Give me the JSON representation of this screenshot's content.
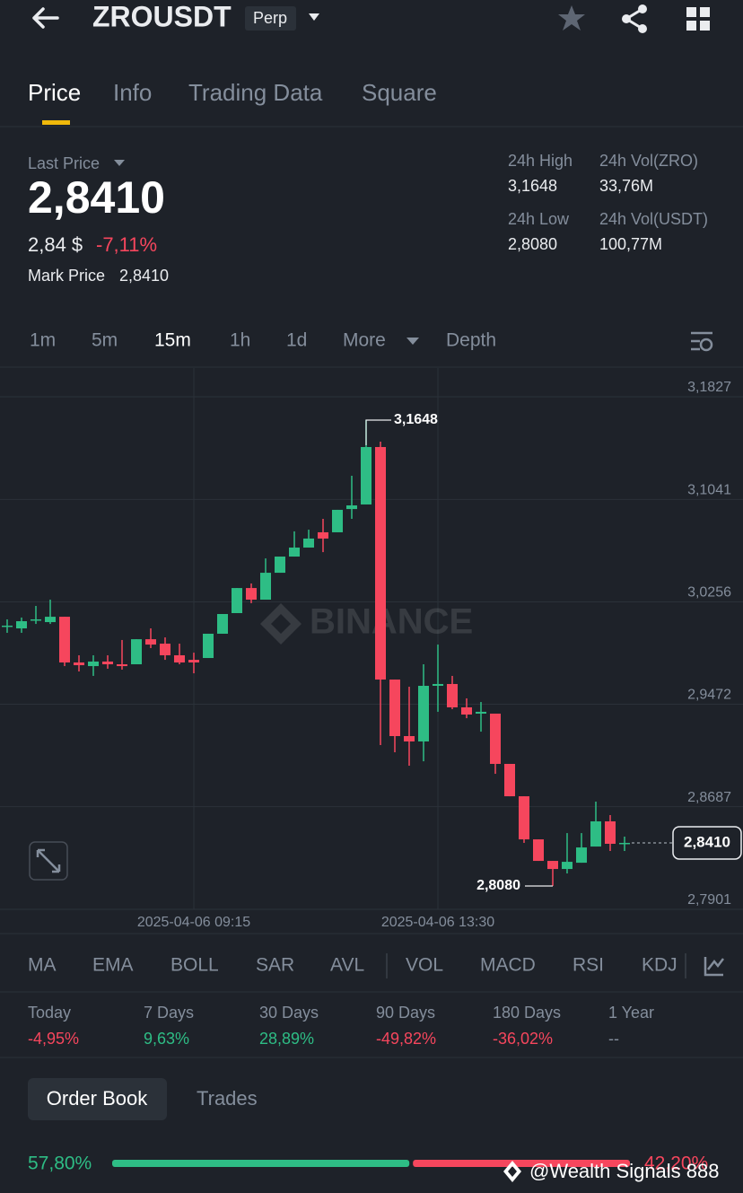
{
  "header": {
    "symbol": "ZROUSDT",
    "badge": "Perp"
  },
  "tabs": [
    "Price",
    "Info",
    "Trading Data",
    "Square"
  ],
  "last_price": {
    "label": "Last Price",
    "value": "2,8410",
    "usd": "2,84 $",
    "change": "-7,11%",
    "mark_label": "Mark Price",
    "mark_value": "2,8410"
  },
  "stats": [
    {
      "label": "24h High",
      "value": "3,1648"
    },
    {
      "label": "24h Vol(ZRO)",
      "value": "33,76M"
    },
    {
      "label": "24h Low",
      "value": "2,8080"
    },
    {
      "label": "24h Vol(USDT)",
      "value": "100,77M"
    }
  ],
  "intervals": [
    "1m",
    "5m",
    "15m",
    "1h",
    "1d",
    "More",
    "Depth"
  ],
  "chart": {
    "type": "candlestick",
    "watermark": "BINANCE",
    "up_color": "#2ebd85",
    "down_color": "#f6465d",
    "ylim": [
      2.7901,
      3.2047
    ],
    "yticks": [
      {
        "value": 3.1827,
        "label": "3,1827"
      },
      {
        "value": 3.1041,
        "label": "3,1041"
      },
      {
        "value": 3.0256,
        "label": "3,0256"
      },
      {
        "value": 2.9472,
        "label": "2,9472"
      },
      {
        "value": 2.8687,
        "label": "2,8687"
      },
      {
        "value": 2.7901,
        "label": "2,7901"
      }
    ],
    "categories": [
      null,
      null,
      null,
      null,
      null,
      null,
      null,
      null,
      null,
      null,
      null,
      null,
      null,
      "2025-04-06 09:15",
      null,
      null,
      null,
      null,
      null,
      null,
      null,
      null,
      null,
      null,
      null,
      null,
      null,
      null,
      null,
      null,
      "2025-04-06 13:30",
      null,
      null,
      null,
      null,
      null,
      null,
      null,
      null,
      null,
      null,
      null,
      null,
      null
    ],
    "candles": [
      {
        "open": 3.0074,
        "high": 3.0122,
        "low": 3.0019,
        "close": 3.0074
      },
      {
        "open": 3.0053,
        "high": 3.0136,
        "low": 3.0019,
        "close": 3.0108
      },
      {
        "open": 3.0122,
        "high": 3.0225,
        "low": 3.0087,
        "close": 3.0122
      },
      {
        "open": 3.0101,
        "high": 3.0273,
        "low": 3.0087,
        "close": 3.0142
      },
      {
        "open": 3.0142,
        "high": 3.0142,
        "low": 2.9764,
        "close": 2.9792
      },
      {
        "open": 2.9792,
        "high": 2.9847,
        "low": 2.9723,
        "close": 2.9771
      },
      {
        "open": 2.9764,
        "high": 2.9847,
        "low": 2.9689,
        "close": 2.9799
      },
      {
        "open": 2.9799,
        "high": 2.9847,
        "low": 2.9744,
        "close": 2.9778
      },
      {
        "open": 2.9778,
        "high": 2.9964,
        "low": 2.9737,
        "close": 2.9764
      },
      {
        "open": 2.9778,
        "high": 2.997,
        "low": 2.9778,
        "close": 2.997
      },
      {
        "open": 2.997,
        "high": 3.0053,
        "low": 2.9902,
        "close": 2.9929
      },
      {
        "open": 2.9936,
        "high": 2.9984,
        "low": 2.9812,
        "close": 2.9847
      },
      {
        "open": 2.9847,
        "high": 2.9936,
        "low": 2.9778,
        "close": 2.9792
      },
      {
        "open": 2.9812,
        "high": 2.9867,
        "low": 2.9709,
        "close": 2.9792
      },
      {
        "open": 2.9826,
        "high": 3.0012,
        "low": 2.9826,
        "close": 3.0012
      },
      {
        "open": 3.0012,
        "high": 3.0163,
        "low": 3.0012,
        "close": 3.0163
      },
      {
        "open": 3.017,
        "high": 3.0362,
        "low": 3.017,
        "close": 3.0362
      },
      {
        "open": 3.0362,
        "high": 3.0397,
        "low": 3.0246,
        "close": 3.0273
      },
      {
        "open": 3.0273,
        "high": 3.0589,
        "low": 3.0273,
        "close": 3.0479
      },
      {
        "open": 3.0479,
        "high": 3.0603,
        "low": 3.0479,
        "close": 3.0603
      },
      {
        "open": 3.0603,
        "high": 3.0796,
        "low": 3.0603,
        "close": 3.0672
      },
      {
        "open": 3.0672,
        "high": 3.0809,
        "low": 3.0672,
        "close": 3.0741
      },
      {
        "open": 3.0789,
        "high": 3.0892,
        "low": 3.0637,
        "close": 3.0741
      },
      {
        "open": 3.0789,
        "high": 3.0961,
        "low": 3.0789,
        "close": 3.0961
      },
      {
        "open": 3.0967,
        "high": 3.1222,
        "low": 3.0892,
        "close": 3.0995
      },
      {
        "open": 3.1002,
        "high": 3.1648,
        "low": 3.1002,
        "close": 3.1442
      },
      {
        "open": 3.1442,
        "high": 3.1483,
        "low": 2.9159,
        "close": 2.9661
      },
      {
        "open": 2.9661,
        "high": 2.9661,
        "low": 2.9104,
        "close": 2.9228
      },
      {
        "open": 2.9228,
        "high": 2.9606,
        "low": 2.9001,
        "close": 2.9187
      },
      {
        "open": 2.9187,
        "high": 2.9778,
        "low": 2.9035,
        "close": 2.9613
      },
      {
        "open": 2.9613,
        "high": 2.9929,
        "low": 2.9414,
        "close": 2.9627
      },
      {
        "open": 2.9627,
        "high": 2.9689,
        "low": 2.9434,
        "close": 2.9448
      },
      {
        "open": 2.9448,
        "high": 2.9517,
        "low": 2.9365,
        "close": 2.9393
      },
      {
        "open": 2.94,
        "high": 2.9489,
        "low": 2.9262,
        "close": 2.9414
      },
      {
        "open": 2.94,
        "high": 2.94,
        "low": 2.8939,
        "close": 2.9015
      },
      {
        "open": 2.9015,
        "high": 2.9015,
        "low": 2.8767,
        "close": 2.8767
      },
      {
        "open": 2.8767,
        "high": 2.8767,
        "low": 2.841,
        "close": 2.8437
      },
      {
        "open": 2.8437,
        "high": 2.8437,
        "low": 2.8272,
        "close": 2.8272
      },
      {
        "open": 2.8272,
        "high": 2.8272,
        "low": 2.808,
        "close": 2.821
      },
      {
        "open": 2.821,
        "high": 2.8485,
        "low": 2.8176,
        "close": 2.8265
      },
      {
        "open": 2.8258,
        "high": 2.8485,
        "low": 2.8258,
        "close": 2.8375
      },
      {
        "open": 2.8382,
        "high": 2.8726,
        "low": 2.8382,
        "close": 2.8575
      },
      {
        "open": 2.8575,
        "high": 2.8623,
        "low": 2.8348,
        "close": 2.8403
      },
      {
        "open": 2.8403,
        "high": 2.8458,
        "low": 2.8348,
        "close": 2.841
      }
    ],
    "high_label": {
      "value": 3.1648,
      "label": "3,1648"
    },
    "low_label": {
      "value": 2.808,
      "label": "2,8080"
    },
    "last": {
      "value": 2.841,
      "label": "2,8410"
    }
  },
  "indicators": [
    "MA",
    "EMA",
    "BOLL",
    "SAR",
    "AVL",
    "VOL",
    "MACD",
    "RSI",
    "KDJ"
  ],
  "performance": [
    {
      "period": "Today",
      "change": "-4,95%"
    },
    {
      "period": "7 Days",
      "change": "9,63%"
    },
    {
      "period": "30 Days",
      "change": "28,89%"
    },
    {
      "period": "90 Days",
      "change": "-49,82%"
    },
    {
      "period": "180 Days",
      "change": "-36,02%"
    },
    {
      "period": "1 Year",
      "change": "--"
    }
  ],
  "book_tabs": [
    "Order Book",
    "Trades"
  ],
  "ratio": {
    "buy": {
      "value": 57.8,
      "label": "57,80%"
    },
    "sell": {
      "value": 42.2,
      "label": "42,20%"
    }
  },
  "watermark": "@Wealth Signals 888"
}
